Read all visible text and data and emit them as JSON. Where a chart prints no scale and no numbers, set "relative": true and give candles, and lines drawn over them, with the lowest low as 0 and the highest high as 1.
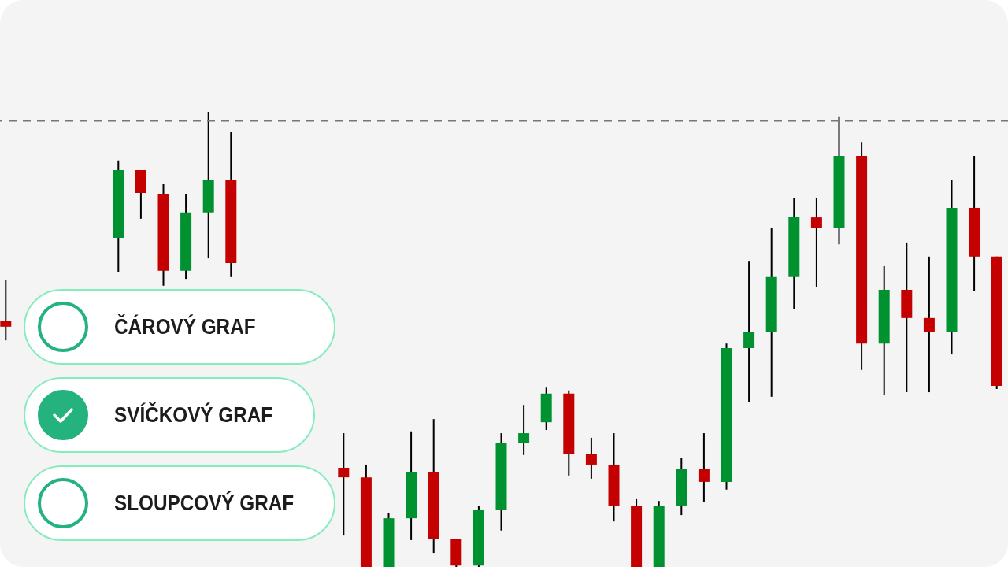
{
  "chart_data": {
    "type": "candlestick",
    "relative": true,
    "categories": [
      null,
      null,
      null,
      null,
      null,
      null,
      null,
      null,
      null,
      null,
      null,
      null,
      null,
      null,
      null,
      null,
      null,
      null,
      null,
      null,
      null,
      null,
      null,
      null,
      null,
      null,
      null,
      null,
      null,
      null,
      null,
      null,
      null,
      null,
      null,
      null,
      null,
      null,
      null,
      null,
      null,
      null,
      null,
      null,
      null
    ],
    "ohlc": [
      [
        0.54,
        0.63,
        0.498,
        0.528
      ],
      null,
      null,
      null,
      null,
      [
        0.723,
        0.893,
        0.647,
        0.872
      ],
      [
        0.872,
        0.872,
        0.765,
        0.822
      ],
      [
        0.82,
        0.841,
        0.618,
        0.651
      ],
      [
        0.651,
        0.82,
        0.633,
        0.779
      ],
      [
        0.779,
        1,
        0.678,
        0.851
      ],
      [
        0.851,
        0.955,
        0.637,
        0.668
      ],
      null,
      null,
      null,
      null,
      [
        0.218,
        0.294,
        0.069,
        0.197
      ],
      [
        0.197,
        0.225,
        0,
        0
      ],
      [
        0,
        0.118,
        0,
        0.107
      ],
      [
        0.107,
        0.298,
        0.059,
        0.208
      ],
      [
        0.208,
        0.325,
        0.031,
        0.062
      ],
      [
        0.062,
        0.062,
        0,
        0.003
      ],
      [
        0.003,
        0.135,
        0,
        0.125
      ],
      [
        0.125,
        0.294,
        0.08,
        0.273
      ],
      [
        0.273,
        0.356,
        0.246,
        0.294
      ],
      [
        0.318,
        0.394,
        0.301,
        0.381
      ],
      [
        0.381,
        0.388,
        0.201,
        0.249
      ],
      [
        0.249,
        0.284,
        0.194,
        0.225
      ],
      [
        0.225,
        0.294,
        0.1,
        0.135
      ],
      [
        0.135,
        0.149,
        0,
        0
      ],
      [
        0,
        0.145,
        0,
        0.135
      ],
      [
        0.135,
        0.239,
        0.114,
        0.215
      ],
      [
        0.215,
        0.294,
        0.142,
        0.187
      ],
      [
        0.187,
        0.491,
        0.17,
        0.481
      ],
      [
        0.481,
        0.671,
        0.363,
        0.516
      ],
      [
        0.516,
        0.744,
        0.374,
        0.637
      ],
      [
        0.637,
        0.81,
        0.567,
        0.768
      ],
      [
        0.768,
        0.81,
        0.616,
        0.744
      ],
      [
        0.744,
        0.99,
        0.709,
        0.903
      ],
      [
        0.903,
        0.934,
        0.433,
        0.491
      ],
      [
        0.491,
        0.661,
        0.377,
        0.609
      ],
      [
        0.609,
        0.713,
        0.384,
        0.547
      ],
      [
        0.547,
        0.682,
        0.384,
        0.516
      ],
      [
        0.516,
        0.851,
        0.467,
        0.789
      ],
      [
        0.789,
        0.903,
        0.606,
        0.682
      ],
      [
        0.682,
        0.682,
        0.391,
        0.398
      ]
    ],
    "colors": [
      "#c40000",
      null,
      null,
      null,
      null,
      "#009130",
      "#c40000",
      "#c40000",
      "#009130",
      "#009130",
      "#c40000",
      null,
      null,
      null,
      null,
      "#c40000",
      "#c40000",
      "#009130",
      "#009130",
      "#c40000",
      "#c40000",
      "#009130",
      "#009130",
      "#009130",
      "#009130",
      "#c40000",
      "#c40000",
      "#c40000",
      "#c40000",
      "#009130",
      "#009130",
      "#c40000",
      "#009130",
      "#009130",
      "#009130",
      "#009130",
      "#c40000",
      "#009130",
      "#c40000",
      "#009130",
      "#c40000",
      "#c40000",
      "#009130",
      "#c40000",
      "#c40000"
    ],
    "ref_lines": [
      {
        "axis": "y",
        "value": 0.98,
        "color": "#777777",
        "line_style": "dashed"
      }
    ],
    "annotations": [
      "ČÁROVÝ GRAF",
      "SVÍČKOVÝ GRAF",
      "SLOUPCOVÝ GRAF"
    ],
    "grid": false,
    "legend": false,
    "tick_labels": false
  }
}
